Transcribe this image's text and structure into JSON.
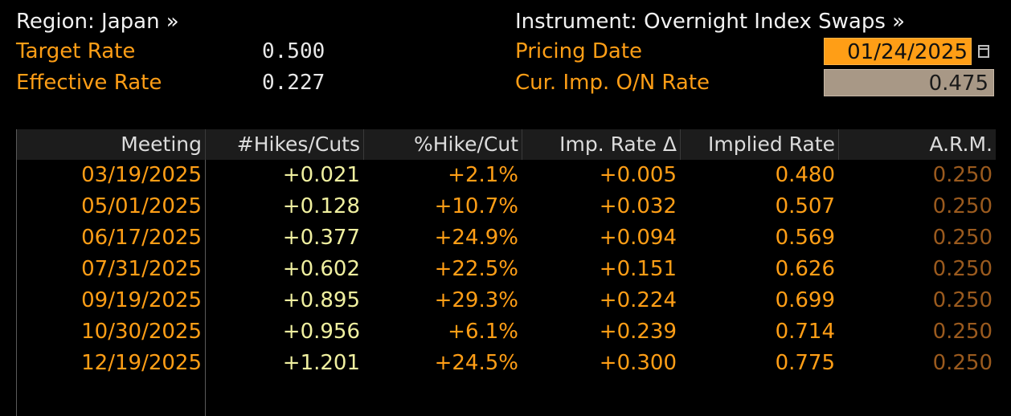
{
  "header": {
    "region_label": "Region: Japan »",
    "target_rate_label": "Target Rate",
    "target_rate_value": "0.500",
    "effective_rate_label": "Effective Rate",
    "effective_rate_value": "0.227",
    "instrument_label": "Instrument: Overnight Index Swaps »",
    "pricing_date_label": "Pricing Date",
    "pricing_date_value": "01/24/2025",
    "cur_imp_rate_label": "Cur. Imp. O/N Rate",
    "cur_imp_rate_value": "0.475"
  },
  "table": {
    "columns": [
      "Meeting",
      "#Hikes/Cuts",
      "%Hike/Cut",
      "Imp. Rate Δ",
      "Implied Rate",
      "A.R.M."
    ],
    "rows": [
      {
        "meeting": "03/19/2025",
        "hikes": "+0.021",
        "pct": "+2.1%",
        "delta": "+0.005",
        "implied": "0.480",
        "arm": "0.250"
      },
      {
        "meeting": "05/01/2025",
        "hikes": "+0.128",
        "pct": "+10.7%",
        "delta": "+0.032",
        "implied": "0.507",
        "arm": "0.250"
      },
      {
        "meeting": "06/17/2025",
        "hikes": "+0.377",
        "pct": "+24.9%",
        "delta": "+0.094",
        "implied": "0.569",
        "arm": "0.250"
      },
      {
        "meeting": "07/31/2025",
        "hikes": "+0.602",
        "pct": "+22.5%",
        "delta": "+0.151",
        "implied": "0.626",
        "arm": "0.250"
      },
      {
        "meeting": "09/19/2025",
        "hikes": "+0.895",
        "pct": "+29.3%",
        "delta": "+0.224",
        "implied": "0.699",
        "arm": "0.250"
      },
      {
        "meeting": "10/30/2025",
        "hikes": "+0.956",
        "pct": "+6.1%",
        "delta": "+0.239",
        "implied": "0.714",
        "arm": "0.250"
      },
      {
        "meeting": "12/19/2025",
        "hikes": "+1.201",
        "pct": "+24.5%",
        "delta": "+0.300",
        "implied": "0.775",
        "arm": "0.250"
      }
    ]
  },
  "icons": {
    "calendar": "calendar-icon"
  },
  "colors": {
    "background": "#000000",
    "label_orange": "#ff9e16",
    "date_box": "#ff9e16",
    "rate_box": "#a89886",
    "hikes_yellow": "#f0f0a0",
    "arm_brown": "#9a5a1e"
  }
}
